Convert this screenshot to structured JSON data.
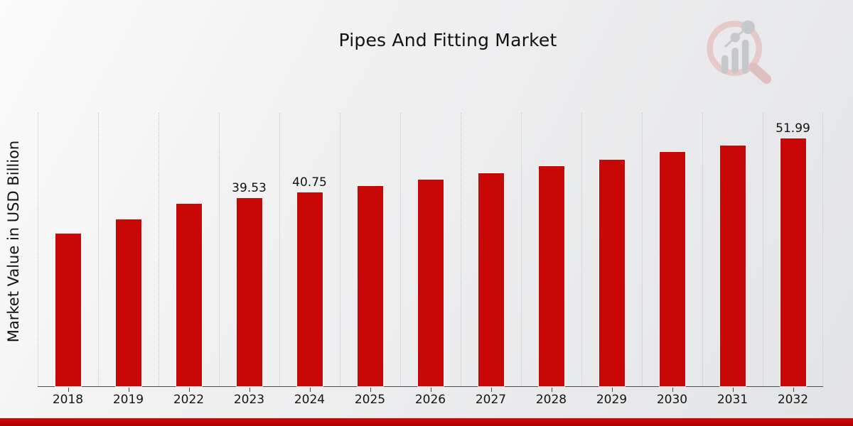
{
  "page": {
    "background_top_color": "#fbfbfb",
    "background_bottom_color": "#e3e4e6",
    "footer_bar_color": "#c40606"
  },
  "chart_data": {
    "type": "bar",
    "title": "Pipes And Fitting Market",
    "xlabel": "",
    "ylabel": "Market Value in USD Billion",
    "categories": [
      "2018",
      "2019",
      "2022",
      "2023",
      "2024",
      "2025",
      "2026",
      "2027",
      "2028",
      "2029",
      "2030",
      "2031",
      "2032"
    ],
    "values": [
      32.05,
      35.1,
      38.35,
      39.53,
      40.75,
      42.1,
      43.4,
      44.8,
      46.25,
      47.6,
      49.2,
      50.6,
      51.99
    ],
    "bar_labels": [
      "",
      "",
      "",
      "39.53",
      "40.75",
      "",
      "",
      "",
      "",
      "",
      "",
      "",
      "51.99"
    ],
    "ylim": [
      0,
      57.4
    ],
    "bar_color": "#c80707",
    "bar_edge_color": "#f2f2f2",
    "grid": "vertical dotted separators between categories",
    "legend": "none",
    "axis_line_color": "#4d4d4d"
  },
  "watermark": {
    "icon": "magnifier-bar-chart-logo",
    "ring_color": "#e6caca",
    "handle_color": "#e0bfbf",
    "glyph_color": "#c7c8cc"
  }
}
